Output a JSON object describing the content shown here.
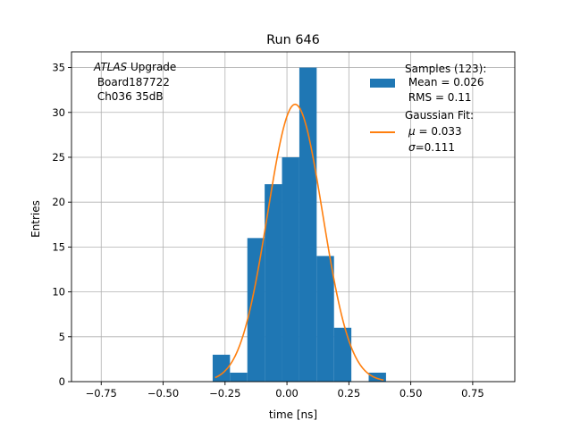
{
  "chart_data": {
    "type": "bar",
    "title": "Run 646",
    "xlabel": "time [ns]",
    "ylabel": "Entries",
    "xlim": [
      -0.87,
      0.92
    ],
    "ylim": [
      0,
      36.75
    ],
    "xticks": [
      -0.75,
      -0.5,
      -0.25,
      0.0,
      0.25,
      0.5,
      0.75
    ],
    "xtick_labels": [
      "−0.75",
      "−0.50",
      "−0.25",
      "0.00",
      "0.25",
      "0.50",
      "0.75"
    ],
    "yticks": [
      0,
      5,
      10,
      15,
      20,
      25,
      30,
      35
    ],
    "ytick_labels": [
      "0",
      "5",
      "10",
      "15",
      "20",
      "25",
      "30",
      "35"
    ],
    "grid": true,
    "bar_color": "#1f77b4",
    "fit_color": "#ff7f0e",
    "bins": [
      {
        "x0": -0.3,
        "x1": -0.23,
        "count": 3
      },
      {
        "x0": -0.23,
        "x1": -0.16,
        "count": 1
      },
      {
        "x0": -0.16,
        "x1": -0.09,
        "count": 16
      },
      {
        "x0": -0.09,
        "x1": -0.02,
        "count": 22
      },
      {
        "x0": -0.02,
        "x1": 0.05,
        "count": 25
      },
      {
        "x0": 0.05,
        "x1": 0.12,
        "count": 35
      },
      {
        "x0": 0.12,
        "x1": 0.19,
        "count": 14
      },
      {
        "x0": 0.19,
        "x1": 0.26,
        "count": 6
      },
      {
        "x0": 0.26,
        "x1": 0.33,
        "count": 0
      },
      {
        "x0": 0.33,
        "x1": 0.4,
        "count": 1
      }
    ],
    "fit": {
      "amplitude": 30.9,
      "mu": 0.033,
      "sigma": 0.111,
      "x_range": [
        -0.29,
        0.39
      ]
    },
    "annotation": {
      "atlas": "ATLAS",
      "upgrade": " Upgrade",
      "board": " Board187722",
      "channel": " Ch036 35dB"
    },
    "legend": {
      "location": "upper right",
      "samples_header": "Samples (123):",
      "samples_mean": " Mean = 0.026",
      "samples_rms": " RMS = 0.11",
      "fit_header": "Gaussian Fit:",
      "fit_mu_symbol": "μ",
      "fit_mu_value": " = 0.033",
      "fit_sigma_symbol": "σ",
      "fit_sigma_value": "=0.111"
    }
  }
}
